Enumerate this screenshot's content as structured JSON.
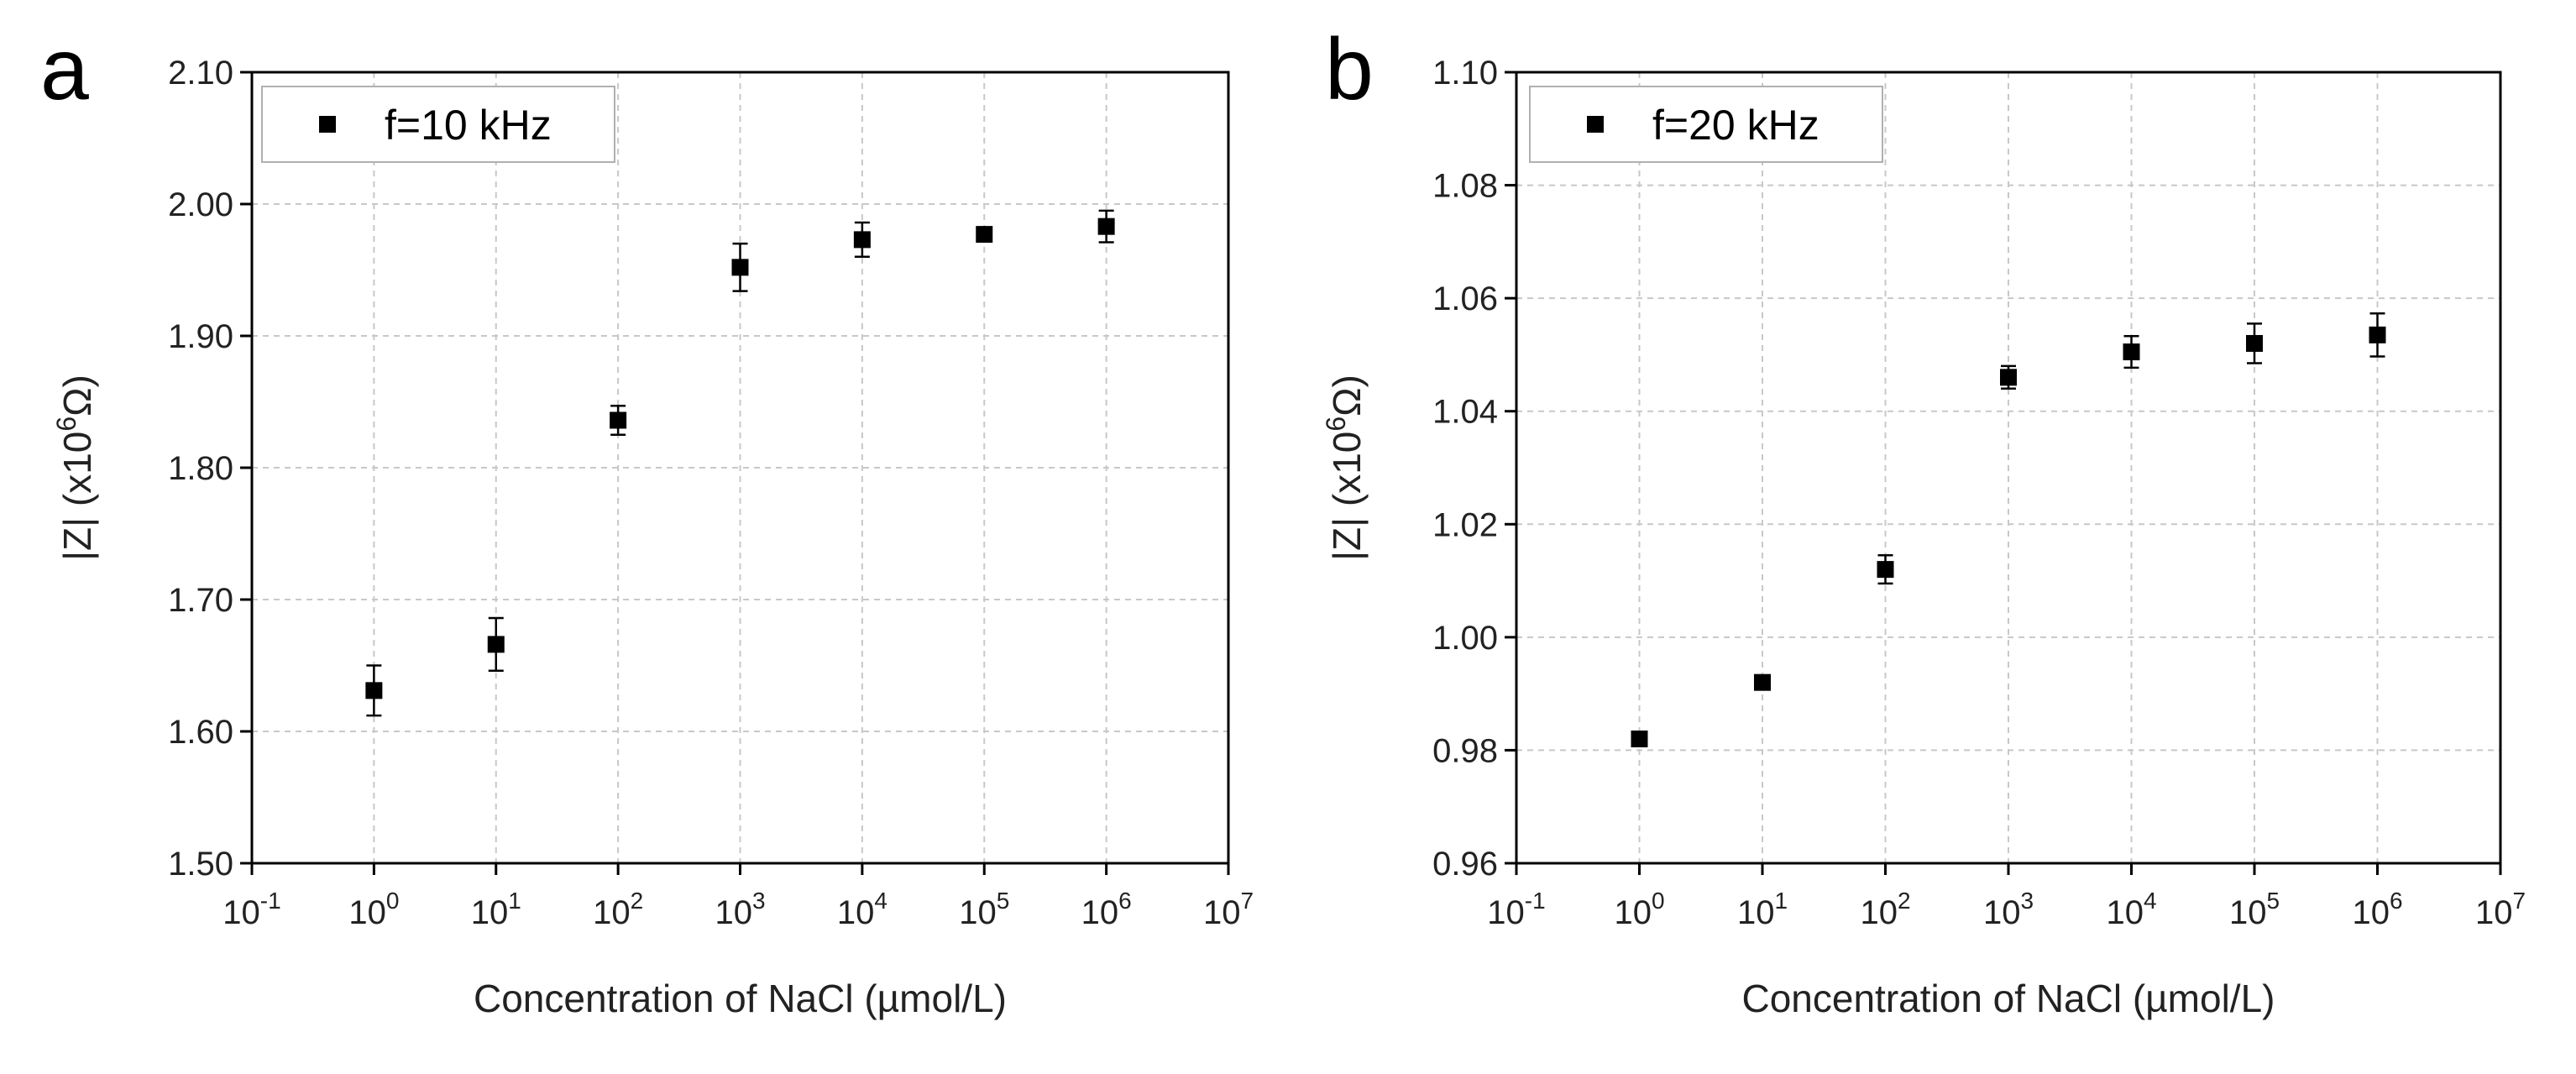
{
  "chart_data": [
    {
      "type": "scatter",
      "panel_label": "a",
      "xlabel": "Concentration of NaCl (µmol/L)",
      "ylabel": "|Z| (x10",
      "ylabel_exp": "6",
      "ylabel_unit": "Ω)",
      "xscale": "log",
      "xlim": [
        0.1,
        10000000
      ],
      "x_ticks": [
        {
          "base": "10",
          "exp": "-1"
        },
        {
          "base": "10",
          "exp": "0"
        },
        {
          "base": "10",
          "exp": "1"
        },
        {
          "base": "10",
          "exp": "2"
        },
        {
          "base": "10",
          "exp": "3"
        },
        {
          "base": "10",
          "exp": "4"
        },
        {
          "base": "10",
          "exp": "5"
        },
        {
          "base": "10",
          "exp": "6"
        },
        {
          "base": "10",
          "exp": "7"
        }
      ],
      "ylim": [
        1.5,
        2.1
      ],
      "y_ticks": [
        "1.50",
        "1.60",
        "1.70",
        "1.80",
        "1.90",
        "2.00",
        "2.10"
      ],
      "grid": true,
      "legend_position": "top-left",
      "series": [
        {
          "name": "f=10 kHz",
          "marker": "square",
          "color": "#000000",
          "x": [
            1,
            10,
            100,
            1000,
            10000,
            100000,
            1000000
          ],
          "y": [
            1.631,
            1.666,
            1.836,
            1.952,
            1.973,
            1.977,
            1.983
          ],
          "error": [
            0.019,
            0.02,
            0.011,
            0.018,
            0.013,
            0.0,
            0.012
          ]
        }
      ]
    },
    {
      "type": "scatter",
      "panel_label": "b",
      "xlabel": "Concentration of NaCl (µmol/L)",
      "ylabel": "|Z| (x10",
      "ylabel_exp": "6",
      "ylabel_unit": "Ω)",
      "xscale": "log",
      "xlim": [
        0.1,
        10000000
      ],
      "x_ticks": [
        {
          "base": "10",
          "exp": "-1"
        },
        {
          "base": "10",
          "exp": "0"
        },
        {
          "base": "10",
          "exp": "1"
        },
        {
          "base": "10",
          "exp": "2"
        },
        {
          "base": "10",
          "exp": "3"
        },
        {
          "base": "10",
          "exp": "4"
        },
        {
          "base": "10",
          "exp": "5"
        },
        {
          "base": "10",
          "exp": "6"
        },
        {
          "base": "10",
          "exp": "7"
        }
      ],
      "ylim": [
        0.96,
        1.1
      ],
      "y_ticks": [
        "0.96",
        "0.98",
        "1.00",
        "1.02",
        "1.04",
        "1.06",
        "1.08",
        "1.10"
      ],
      "grid": true,
      "legend_position": "top-left",
      "series": [
        {
          "name": "f=20 kHz",
          "marker": "square",
          "color": "#000000",
          "x": [
            1,
            10,
            100,
            1000,
            10000,
            100000,
            1000000
          ],
          "y": [
            0.982,
            0.992,
            1.012,
            1.046,
            1.0505,
            1.052,
            1.0535
          ],
          "error": [
            0.0,
            0.0,
            0.0025,
            0.002,
            0.0028,
            0.0035,
            0.0038
          ]
        }
      ]
    }
  ]
}
